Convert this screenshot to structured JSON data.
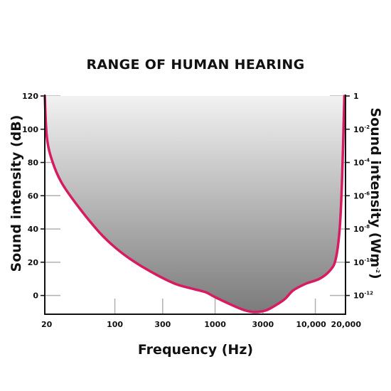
{
  "chart_data": {
    "type": "area",
    "title": "RANGE OF HUMAN HEARING",
    "xlabel": "Frequency (Hz)",
    "ylabel": "Sound intensity (dB)",
    "y2label": {
      "base": "Sound intensity (Wm",
      "sup": "-2",
      "end": ")"
    },
    "x_scale": "log",
    "xlim": [
      20,
      20000
    ],
    "ylim": [
      -10,
      120
    ],
    "grid": false,
    "x_ticks": [
      {
        "value": 20,
        "label": "20"
      },
      {
        "value": 100,
        "label": "100"
      },
      {
        "value": 300,
        "label": "300"
      },
      {
        "value": 1000,
        "label": "1000"
      },
      {
        "value": 3000,
        "label": "3000"
      },
      {
        "value": 10000,
        "label": "10,000"
      },
      {
        "value": 20000,
        "label": "20,000"
      }
    ],
    "y_ticks": [
      0,
      20,
      40,
      60,
      80,
      100,
      120
    ],
    "y2_ticks": [
      {
        "db": 120,
        "base": "1",
        "exp": ""
      },
      {
        "db": 100,
        "base": "10",
        "exp": "-2"
      },
      {
        "db": 80,
        "base": "10",
        "exp": "-4"
      },
      {
        "db": 60,
        "base": "10",
        "exp": "-6"
      },
      {
        "db": 40,
        "base": "10",
        "exp": "-8"
      },
      {
        "db": 20,
        "base": "10",
        "exp": "-10"
      },
      {
        "db": 0,
        "base": "10",
        "exp": "-12"
      }
    ],
    "threshold_curve": [
      {
        "x": 20,
        "y": 120
      },
      {
        "x": 21,
        "y": 95
      },
      {
        "x": 24,
        "y": 80
      },
      {
        "x": 30,
        "y": 67
      },
      {
        "x": 45,
        "y": 52
      },
      {
        "x": 70,
        "y": 38
      },
      {
        "x": 100,
        "y": 29
      },
      {
        "x": 150,
        "y": 21
      },
      {
        "x": 250,
        "y": 13
      },
      {
        "x": 400,
        "y": 7
      },
      {
        "x": 600,
        "y": 4
      },
      {
        "x": 800,
        "y": 2
      },
      {
        "x": 1000,
        "y": -1
      },
      {
        "x": 1500,
        "y": -6
      },
      {
        "x": 2000,
        "y": -9
      },
      {
        "x": 2500,
        "y": -10
      },
      {
        "x": 3200,
        "y": -9
      },
      {
        "x": 4000,
        "y": -6
      },
      {
        "x": 5000,
        "y": -2
      },
      {
        "x": 6000,
        "y": 3
      },
      {
        "x": 8000,
        "y": 7
      },
      {
        "x": 11000,
        "y": 10
      },
      {
        "x": 14000,
        "y": 15
      },
      {
        "x": 16000,
        "y": 22
      },
      {
        "x": 17500,
        "y": 40
      },
      {
        "x": 18500,
        "y": 70
      },
      {
        "x": 19500,
        "y": 120
      }
    ],
    "upper_limit_db": 120,
    "colors": {
      "curve": "#d81b60",
      "fill_top": "#f2f2f2",
      "fill_bottom": "#7b7b7b",
      "axis": "#111111",
      "tick": "#b0b0b0"
    }
  }
}
